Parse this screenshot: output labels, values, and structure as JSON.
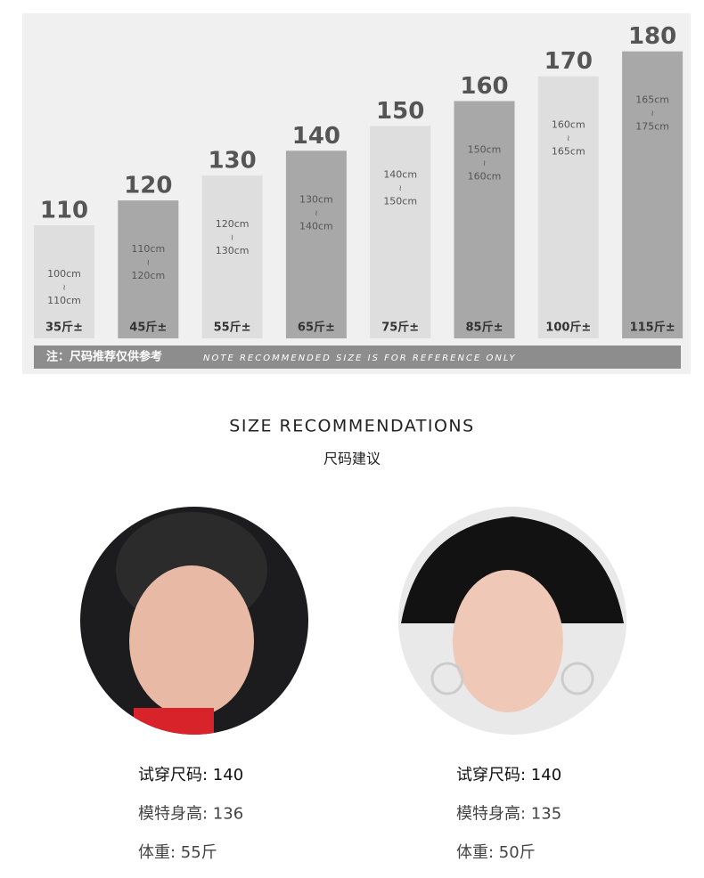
{
  "size_chart": {
    "bars": [
      {
        "size": "110",
        "range": [
          "100cm",
          "≀",
          "110cm"
        ],
        "weight": "35斤±"
      },
      {
        "size": "120",
        "range": [
          "110cm",
          "≀",
          "120cm"
        ],
        "weight": "45斤±"
      },
      {
        "size": "130",
        "range": [
          "120cm",
          "≀",
          "130cm"
        ],
        "weight": "55斤±"
      },
      {
        "size": "140",
        "range": [
          "130cm",
          "≀",
          "140cm"
        ],
        "weight": "65斤±"
      },
      {
        "size": "150",
        "range": [
          "140cm",
          "≀",
          "150cm"
        ],
        "weight": "75斤±"
      },
      {
        "size": "160",
        "range": [
          "150cm",
          "≀",
          "160cm"
        ],
        "weight": "85斤±"
      },
      {
        "size": "170",
        "range": [
          "160cm",
          "≀",
          "165cm"
        ],
        "weight": "100斤±"
      },
      {
        "size": "180",
        "range": [
          "165cm",
          "≀",
          "175cm"
        ],
        "weight": "115斤±"
      }
    ],
    "note_cn": "注：尺码推荐仅供参考",
    "note_en": "NOTE RECOMMENDED SIZE IS FOR REFERENCE ONLY"
  },
  "section": {
    "title": "SIZE RECOMMENDATIONS",
    "subtitle": "尺码建议"
  },
  "models": [
    {
      "lines": [
        "试穿尺码: 140",
        "模特身高: 136",
        "体重: 55斤"
      ]
    },
    {
      "lines": [
        "试穿尺码: 140",
        "模特身高: 135",
        "体重: 50斤"
      ]
    }
  ]
}
